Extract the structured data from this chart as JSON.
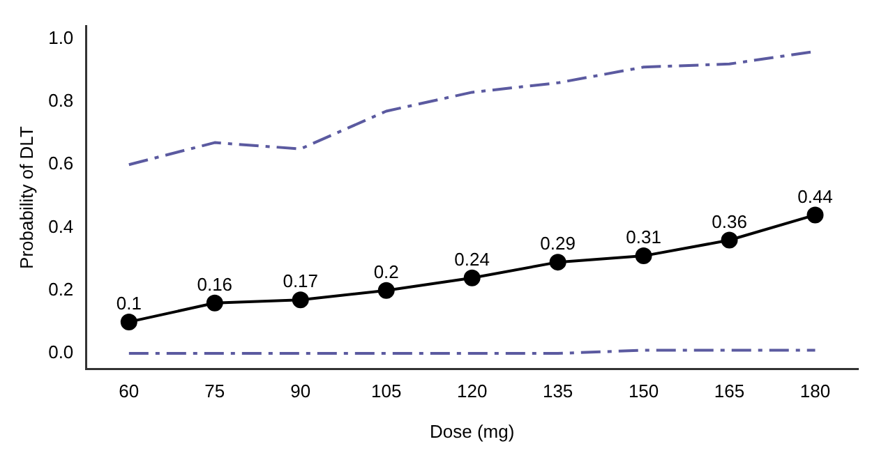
{
  "chart_data": {
    "type": "line",
    "xlabel": "Dose (mg)",
    "ylabel": "Probability of DLT",
    "categories": [
      "60",
      "75",
      "90",
      "105",
      "120",
      "135",
      "150",
      "165",
      "180"
    ],
    "series": [
      {
        "color": "#5b5aa0",
        "line_style": "dashed",
        "marker": "none",
        "values": [
          0.6,
          0.67,
          0.65,
          0.77,
          0.83,
          0.86,
          0.91,
          0.92,
          0.96
        ]
      },
      {
        "color": "#000000",
        "line_style": "solid",
        "marker": "circle",
        "values": [
          0.1,
          0.16,
          0.17,
          0.2,
          0.24,
          0.29,
          0.31,
          0.36,
          0.44
        ],
        "value_labels": [
          "0.1",
          "0.16",
          "0.17",
          "0.2",
          "0.24",
          "0.29",
          "0.31",
          "0.36",
          "0.44"
        ]
      },
      {
        "color": "#5b5aa0",
        "line_style": "dashed",
        "marker": "none",
        "values": [
          0,
          0,
          0,
          0,
          0,
          0,
          0.01,
          0.01,
          0.01
        ]
      }
    ],
    "ylim": [
      -0.05,
      1.04
    ],
    "yticks": [
      {
        "value": 0,
        "label": "0.0"
      },
      0.2,
      0.4,
      0.6,
      0.8,
      {
        "value": 1,
        "label": "1.0"
      }
    ],
    "grid": false,
    "legend": false
  }
}
